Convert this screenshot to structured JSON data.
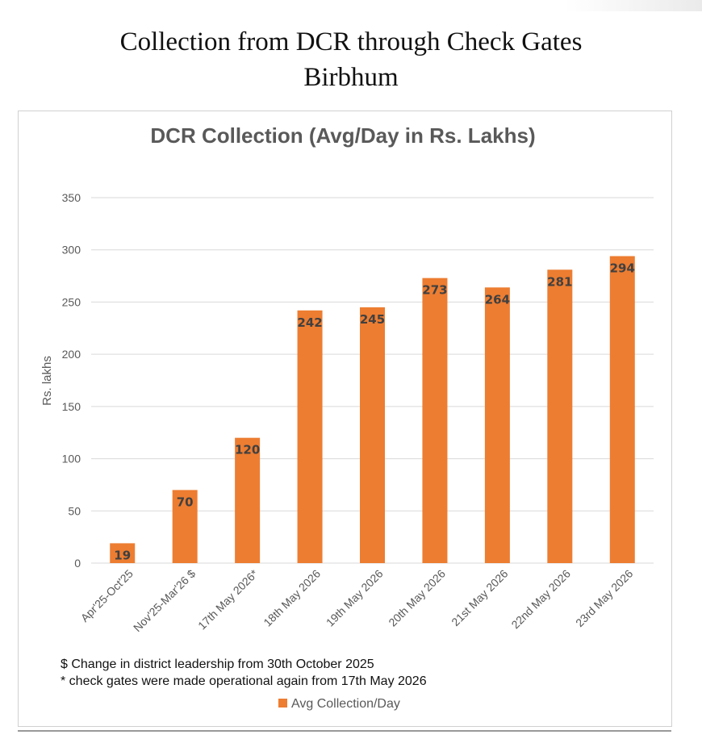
{
  "page": {
    "title_line1": "Collection from DCR through Check Gates",
    "title_line2": "Birbhum"
  },
  "chart_data": {
    "type": "bar",
    "title": "DCR Collection (Avg/Day in Rs. Lakhs)",
    "xlabel": "",
    "ylabel": "Rs. lakhs",
    "ylim": [
      0,
      350
    ],
    "yticks": [
      0,
      50,
      100,
      150,
      200,
      250,
      300,
      350
    ],
    "grid": true,
    "legend_position": "bottom",
    "categories": [
      "Apr'25-Oct'25",
      "Nov'25-Mar'26 $",
      "17th May 2026*",
      "18th May 2026",
      "19th May 2026",
      "20th May 2026",
      "21st May 2026",
      "22nd May 2026",
      "23rd May 2026"
    ],
    "series": [
      {
        "name": "Avg Collection/Day",
        "color": "#ED7D31",
        "values": [
          19,
          70,
          120,
          242,
          245,
          273,
          264,
          281,
          294
        ],
        "data_labels": [
          "19",
          "70",
          "120",
          "242",
          "245",
          "273",
          "264",
          "281",
          "294"
        ]
      }
    ]
  },
  "notes": {
    "line1": "$ Change in district leadership from 30th October 2025",
    "line2": "* check gates were made operational again from 17th May 2026"
  },
  "colors": {
    "bar": "#ED7D31",
    "gridline": "#d9d9d9",
    "text": "#595959"
  }
}
